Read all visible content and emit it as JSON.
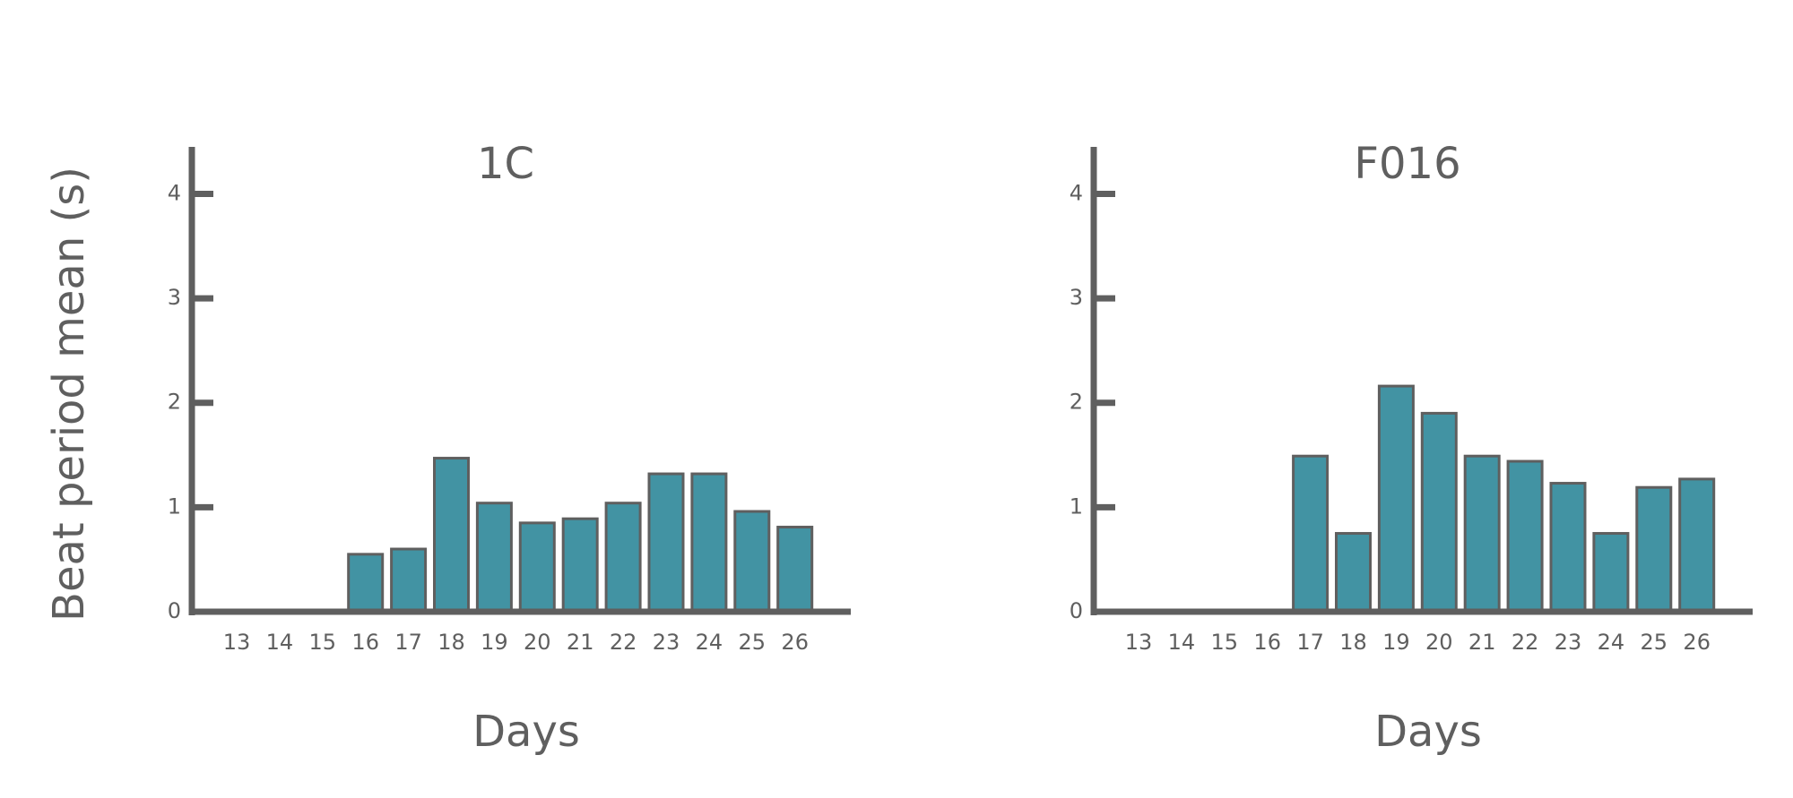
{
  "chart_data": [
    {
      "type": "bar",
      "title": "1C",
      "xlabel": "Days",
      "ylabel": "Beat period mean (s)",
      "categories": [
        "13",
        "14",
        "15",
        "16",
        "17",
        "18",
        "19",
        "20",
        "21",
        "22",
        "23",
        "24",
        "25",
        "26"
      ],
      "values": [
        0,
        0,
        0,
        0.55,
        0.6,
        1.47,
        1.04,
        0.85,
        0.89,
        1.04,
        1.32,
        1.32,
        0.96,
        0.81
      ],
      "color": "#4293a3",
      "ylim": [
        0,
        4.45
      ],
      "yticks": [
        0,
        1,
        2,
        3,
        4
      ]
    },
    {
      "type": "bar",
      "title": "F016",
      "xlabel": "Days",
      "categories": [
        "13",
        "14",
        "15",
        "16",
        "17",
        "18",
        "19",
        "20",
        "21",
        "22",
        "23",
        "24",
        "25",
        "26"
      ],
      "values": [
        0,
        0,
        0,
        0,
        1.49,
        0.75,
        2.16,
        1.9,
        1.49,
        1.44,
        1.23,
        0.75,
        1.19,
        1.27
      ],
      "color": "#4293a3",
      "ylim": [
        0,
        4.45
      ],
      "yticks": [
        0,
        1,
        2,
        3,
        4
      ]
    }
  ]
}
